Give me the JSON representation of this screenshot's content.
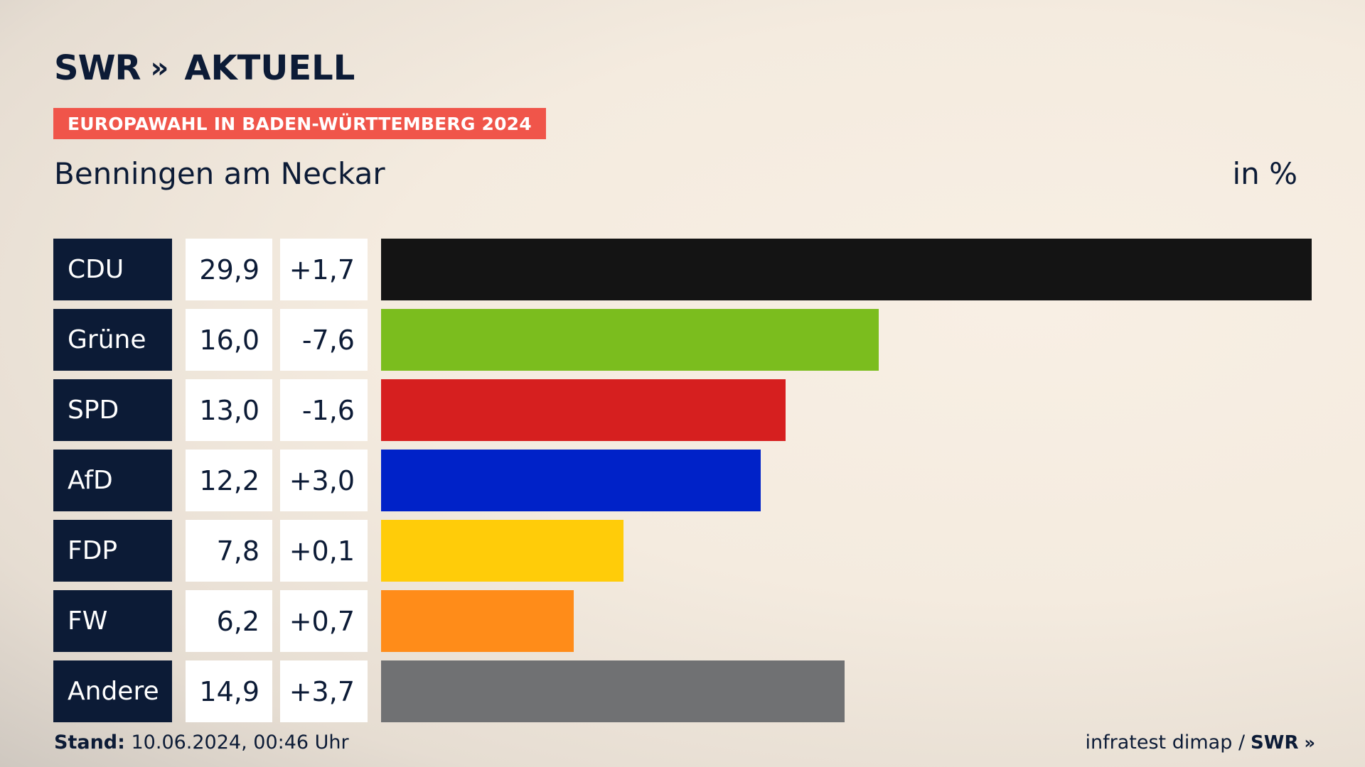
{
  "header": {
    "logo_swr": "SWR",
    "logo_chevrons": "»",
    "logo_aktuell": "AKTUELL",
    "tag": "EUROPAWAHL IN BADEN-WÜRTTEMBERG 2024",
    "location": "Benningen am Neckar",
    "unit": "in %"
  },
  "chart_data": {
    "type": "bar",
    "orientation": "horizontal",
    "title": "Benningen am Neckar",
    "unit": "in %",
    "categories": [
      "CDU",
      "Grüne",
      "SPD",
      "AfD",
      "FDP",
      "FW",
      "Andere"
    ],
    "values": [
      29.9,
      16.0,
      13.0,
      12.2,
      7.8,
      6.2,
      14.9
    ],
    "value_labels": [
      "29,9",
      "16,0",
      "13,0",
      "12,2",
      "7,8",
      "6,2",
      "14,9"
    ],
    "change_labels": [
      "+1,7",
      "-7,6",
      "-1,6",
      "+3,0",
      "+0,1",
      "+0,7",
      "+3,7"
    ],
    "changes": [
      1.7,
      -7.6,
      -1.6,
      3.0,
      0.1,
      0.7,
      3.7
    ],
    "colors": [
      "#141414",
      "#7bbd1e",
      "#d61f1f",
      "#0022c8",
      "#ffcc09",
      "#ff8c19",
      "#707173"
    ],
    "xlim": [
      0,
      29.9
    ],
    "legend": "none",
    "grid": false
  },
  "footer": {
    "stand_label": "Stand:",
    "stand_value": " 10.06.2024, 00:46 Uhr",
    "source": "infratest dimap /",
    "source_swr": "SWR",
    "source_chevrons": "»"
  }
}
